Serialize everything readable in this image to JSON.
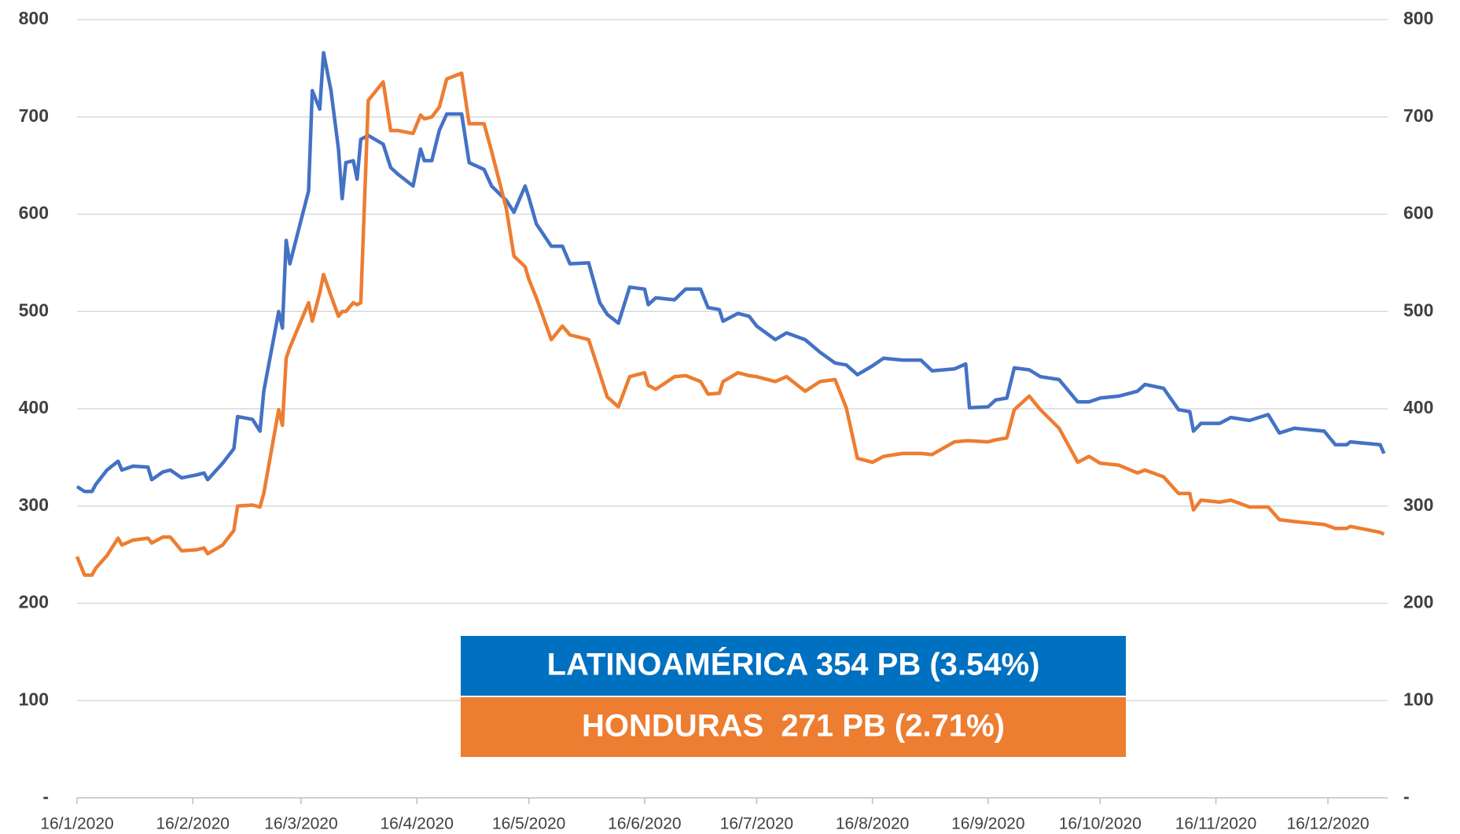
{
  "chart_data": {
    "type": "line",
    "x": [
      "2020-01-16",
      "2020-01-18",
      "2020-01-20",
      "2020-01-21",
      "2020-01-24",
      "2020-01-27",
      "2020-01-28",
      "2020-01-31",
      "2020-02-04",
      "2020-02-05",
      "2020-02-08",
      "2020-02-10",
      "2020-02-13",
      "2020-02-17",
      "2020-02-19",
      "2020-02-20",
      "2020-02-24",
      "2020-02-27",
      "2020-02-28",
      "2020-03-03",
      "2020-03-05",
      "2020-03-06",
      "2020-03-10",
      "2020-03-11",
      "2020-03-12",
      "2020-03-13",
      "2020-03-18",
      "2020-03-19",
      "2020-03-21",
      "2020-03-22",
      "2020-03-24",
      "2020-03-26",
      "2020-03-27",
      "2020-03-28",
      "2020-03-30",
      "2020-03-31",
      "2020-04-01",
      "2020-04-03",
      "2020-04-07",
      "2020-04-09",
      "2020-04-11",
      "2020-04-15",
      "2020-04-17",
      "2020-04-18",
      "2020-04-20",
      "2020-04-22",
      "2020-04-24",
      "2020-04-28",
      "2020-04-30",
      "2020-05-04",
      "2020-05-06",
      "2020-05-10",
      "2020-05-12",
      "2020-05-15",
      "2020-05-16",
      "2020-05-18",
      "2020-05-22",
      "2020-05-25",
      "2020-05-27",
      "2020-06-01",
      "2020-06-04",
      "2020-06-06",
      "2020-06-09",
      "2020-06-12",
      "2020-06-16",
      "2020-06-17",
      "2020-06-19",
      "2020-06-24",
      "2020-06-27",
      "2020-07-01",
      "2020-07-03",
      "2020-07-06",
      "2020-07-07",
      "2020-07-11",
      "2020-07-14",
      "2020-07-16",
      "2020-07-21",
      "2020-07-24",
      "2020-07-29",
      "2020-08-02",
      "2020-08-06",
      "2020-08-09",
      "2020-08-12",
      "2020-08-16",
      "2020-08-19",
      "2020-08-24",
      "2020-08-29",
      "2020-09-01",
      "2020-09-07",
      "2020-09-10",
      "2020-09-11",
      "2020-09-16",
      "2020-09-18",
      "2020-09-21",
      "2020-09-23",
      "2020-09-27",
      "2020-09-30",
      "2020-10-05",
      "2020-10-10",
      "2020-10-13",
      "2020-10-16",
      "2020-10-21",
      "2020-10-26",
      "2020-10-28",
      "2020-11-02",
      "2020-11-06",
      "2020-11-09",
      "2020-11-10",
      "2020-11-12",
      "2020-11-17",
      "2020-11-20",
      "2020-11-25",
      "2020-11-30",
      "2020-12-03",
      "2020-12-07",
      "2020-12-15",
      "2020-12-18",
      "2020-12-21",
      "2020-12-22",
      "2020-12-30",
      "2020-12-31"
    ],
    "series": [
      {
        "name": "LATINOAMÉRICA",
        "color": "#4472c4",
        "values": [
          320,
          315,
          315,
          322,
          337,
          346,
          337,
          341,
          340,
          327,
          335,
          337,
          329,
          332,
          334,
          327,
          344,
          359,
          392,
          389,
          377,
          418,
          500,
          483,
          573,
          549,
          624,
          727,
          708,
          766,
          727,
          667,
          616,
          653,
          655,
          636,
          677,
          681,
          672,
          648,
          641,
          629,
          667,
          655,
          655,
          686,
          703,
          703,
          653,
          646,
          629,
          614,
          602,
          629,
          617,
          590,
          567,
          567,
          549,
          550,
          509,
          497,
          488,
          525,
          523,
          507,
          514,
          512,
          523,
          523,
          504,
          502,
          490,
          498,
          495,
          485,
          471,
          478,
          471,
          458,
          447,
          445,
          435,
          444,
          452,
          450,
          450,
          439,
          441,
          446,
          401,
          402,
          409,
          411,
          442,
          440,
          433,
          430,
          407,
          407,
          411,
          413,
          418,
          425,
          421,
          399,
          397,
          377,
          385,
          385,
          391,
          388,
          394,
          375,
          380,
          377,
          363,
          363,
          366,
          363,
          354
        ]
      },
      {
        "name": "HONDURAS",
        "color": "#ed7d31",
        "values": [
          248,
          229,
          229,
          236,
          249,
          267,
          260,
          265,
          267,
          262,
          268,
          268,
          254,
          255,
          257,
          251,
          260,
          275,
          300,
          301,
          299,
          313,
          399,
          383,
          452,
          463,
          509,
          490,
          519,
          538,
          516,
          495,
          500,
          500,
          509,
          507,
          509,
          717,
          736,
          686,
          686,
          683,
          702,
          698,
          700,
          710,
          739,
          745,
          693,
          693,
          665,
          605,
          557,
          546,
          533,
          514,
          471,
          485,
          476,
          471,
          436,
          412,
          402,
          433,
          437,
          424,
          420,
          433,
          434,
          428,
          415,
          416,
          428,
          437,
          434,
          433,
          428,
          433,
          418,
          428,
          430,
          401,
          349,
          345,
          351,
          354,
          354,
          353,
          366,
          367,
          367,
          366,
          368,
          370,
          399,
          413,
          399,
          380,
          345,
          351,
          344,
          342,
          334,
          337,
          330,
          313,
          313,
          296,
          306,
          304,
          306,
          299,
          299,
          286,
          284,
          281,
          277,
          277,
          279,
          273,
          271
        ]
      }
    ],
    "xlim": [
      "2020-01-16",
      "2021-01-01"
    ],
    "xticks": [
      {
        "value": "2020-01-16",
        "label": "16/1/2020"
      },
      {
        "value": "2020-02-16",
        "label": "16/2/2020"
      },
      {
        "value": "2020-03-16",
        "label": "16/3/2020"
      },
      {
        "value": "2020-04-16",
        "label": "16/4/2020"
      },
      {
        "value": "2020-05-16",
        "label": "16/5/2020"
      },
      {
        "value": "2020-06-16",
        "label": "16/6/2020"
      },
      {
        "value": "2020-07-16",
        "label": "16/7/2020"
      },
      {
        "value": "2020-08-16",
        "label": "16/8/2020"
      },
      {
        "value": "2020-09-16",
        "label": "16/9/2020"
      },
      {
        "value": "2020-10-16",
        "label": "16/10/2020"
      },
      {
        "value": "2020-11-16",
        "label": "16/11/2020"
      },
      {
        "value": "2020-12-16",
        "label": "16/12/2020"
      }
    ],
    "ylim": [
      0,
      800
    ],
    "yticks": [
      {
        "value": 0,
        "label": "-"
      },
      100,
      200,
      300,
      400,
      500,
      600,
      700,
      800
    ],
    "y2lim": [
      0,
      800
    ],
    "y2ticks": [
      {
        "value": 0,
        "label": "-"
      },
      100,
      200,
      300,
      400,
      500,
      600,
      700,
      800
    ],
    "grid": true,
    "annotations": [
      {
        "text": "LATINOAMÉRICA 354 PB (3.54%)",
        "color": "#0070c0"
      },
      {
        "text": "HONDURAS  271 PB (2.71%)",
        "color": "#ed7d31"
      }
    ]
  }
}
